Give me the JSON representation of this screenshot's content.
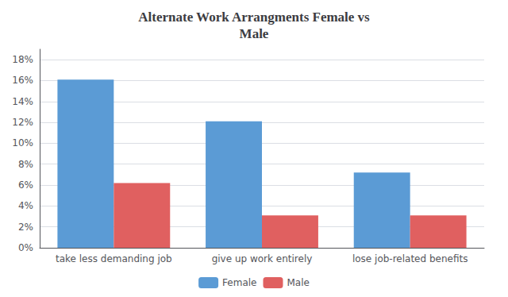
{
  "chart_data": {
    "type": "bar",
    "title": "Alternate Work Arrangments Female vs\nMale",
    "categories": [
      "take less demanding job",
      "give up work entirely",
      "lose job-related benefits"
    ],
    "series": [
      {
        "name": "Female",
        "color": "#5B9BD5",
        "values": [
          0.161,
          0.121,
          0.072
        ]
      },
      {
        "name": "Male",
        "color": "#E06060",
        "values": [
          0.062,
          0.031,
          0.031
        ]
      }
    ],
    "ylim": [
      0,
      0.19
    ],
    "yticks": [
      {
        "value": 0,
        "label": "0%"
      },
      {
        "value": 0.02,
        "label": "2%"
      },
      {
        "value": 0.04,
        "label": "4%"
      },
      {
        "value": 0.06,
        "label": "6%"
      },
      {
        "value": 0.08,
        "label": "8%"
      },
      {
        "value": 0.1,
        "label": "10%"
      },
      {
        "value": 0.12,
        "label": "12%"
      },
      {
        "value": 0.14,
        "label": "14%"
      },
      {
        "value": 0.16,
        "label": "16%"
      },
      {
        "value": 0.18,
        "label": "18%"
      }
    ],
    "grid": true,
    "legend": "bottom"
  }
}
